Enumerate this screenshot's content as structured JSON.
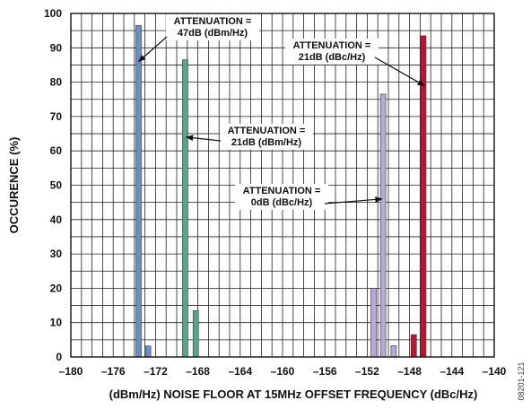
{
  "chart_data": {
    "type": "bar",
    "xlabel": "(dBm/Hz) NOISE FLOOR AT 15MHz OFFSET FREQUENCY (dBc/Hz)",
    "ylabel": "OCCURENCE (%)",
    "xlim": [
      -180,
      -140
    ],
    "ylim": [
      0,
      100
    ],
    "x_ticks": [
      -180,
      -176,
      -172,
      -168,
      -164,
      -160,
      -156,
      -152,
      -148,
      -144,
      -140
    ],
    "y_ticks": [
      0,
      10,
      20,
      30,
      40,
      50,
      60,
      70,
      80,
      90,
      100
    ],
    "grid": true,
    "series": [
      {
        "name": "ATTENUATION = 47dB (dBm/Hz)",
        "color": "#6b8fc4",
        "points": [
          {
            "x": -173.6,
            "y": 96.5
          },
          {
            "x": -172.7,
            "y": 3.2
          }
        ]
      },
      {
        "name": "ATTENUATION = 21dB (dBm/Hz)",
        "color": "#5aa58a",
        "points": [
          {
            "x": -169.2,
            "y": 86.5
          },
          {
            "x": -168.2,
            "y": 13.5
          }
        ]
      },
      {
        "name": "ATTENUATION = 0dB (dBc/Hz)",
        "color": "#b7a9d6",
        "points": [
          {
            "x": -151.4,
            "y": 20
          },
          {
            "x": -150.5,
            "y": 76.5
          },
          {
            "x": -149.5,
            "y": 3.3
          }
        ]
      },
      {
        "name": "ATTENUATION = 21dB (dBc/Hz)",
        "color": "#c8102e",
        "points": [
          {
            "x": -147.6,
            "y": 6.5
          },
          {
            "x": -146.7,
            "y": 93.5
          }
        ]
      }
    ],
    "annotations": [
      {
        "series": 0,
        "lines": [
          "ATTENUATION =",
          "47dB (dBm/Hz)"
        ],
        "arrow_to": {
          "x": -173.6,
          "y": 86
        }
      },
      {
        "series": 1,
        "lines": [
          "ATTENUATION =",
          "21dB (dBm/Hz)"
        ],
        "arrow_to": {
          "x": -169.1,
          "y": 64
        }
      },
      {
        "series": 2,
        "lines": [
          "ATTENUATION =",
          "0dB (dBc/Hz)"
        ],
        "arrow_to": {
          "x": -150.6,
          "y": 46
        }
      },
      {
        "series": 3,
        "lines": [
          "ATTENUATION =",
          "21dB (dBc/Hz)"
        ],
        "arrow_to": {
          "x": -146.6,
          "y": 79
        }
      }
    ]
  },
  "figure_id": "08201-121"
}
